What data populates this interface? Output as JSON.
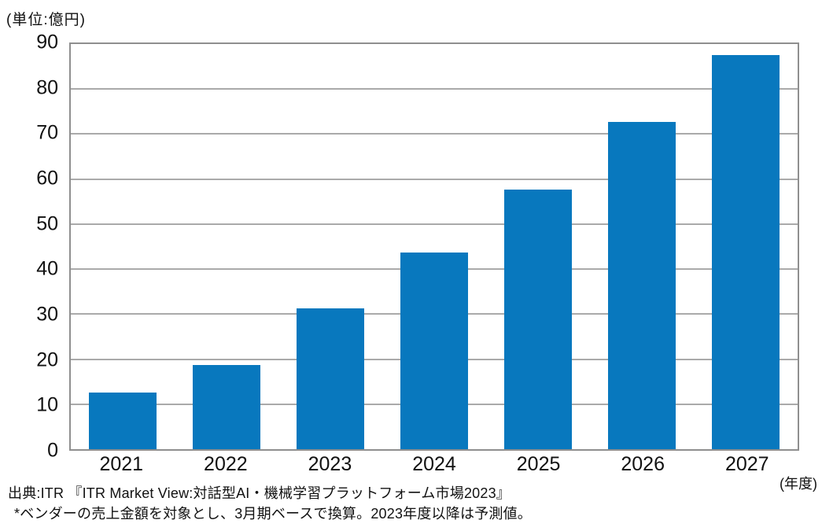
{
  "unit_label": "(単位:億円)",
  "source": {
    "line1": "出典:ITR 『ITR Market View:対話型AI・機械学習プラットフォーム市場2023』",
    "line2": "*ベンダーの売上金額を対象とし、3月期ベースで換算。2023年度以降は予測値。"
  },
  "colors": {
    "bar": "#0878BE",
    "gridline": "#AAAAAA",
    "frame": "#8F8F8F",
    "text": "#111111"
  },
  "chart_data": {
    "type": "bar",
    "categories": [
      "2021",
      "2022",
      "2023",
      "2024",
      "2025",
      "2026",
      "2027"
    ],
    "values": [
      12.6,
      18.7,
      31.3,
      43.7,
      57.7,
      72.7,
      87.6
    ],
    "title": "",
    "xlabel": "(年度)",
    "ylabel": "(単位:億円)",
    "ylim": [
      0,
      90
    ],
    "yticks": [
      0,
      10,
      20,
      30,
      40,
      50,
      60,
      70,
      80,
      90
    ],
    "grid": true,
    "legend": false
  }
}
